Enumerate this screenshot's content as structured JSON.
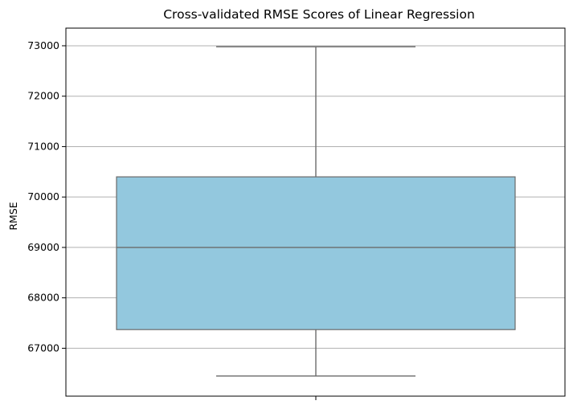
{
  "chart_data": {
    "type": "box",
    "title": "Cross-validated RMSE Scores of Linear Regression",
    "xlabel": "",
    "ylabel": "RMSE",
    "ylim": [
      66050,
      73350
    ],
    "yticks": [
      67000,
      68000,
      69000,
      70000,
      71000,
      72000,
      73000
    ],
    "ytick_labels": [
      "67000",
      "68000",
      "69000",
      "70000",
      "71000",
      "72000",
      "73000"
    ],
    "grid": true,
    "box": {
      "min": 66450,
      "q1": 67370,
      "median": 69000,
      "q3": 70400,
      "max": 72980
    },
    "colors": {
      "box_fill": "#93c8de",
      "box_edge": "#6b6b6b",
      "grid": "#b0b0b0",
      "axis": "#000000"
    }
  }
}
